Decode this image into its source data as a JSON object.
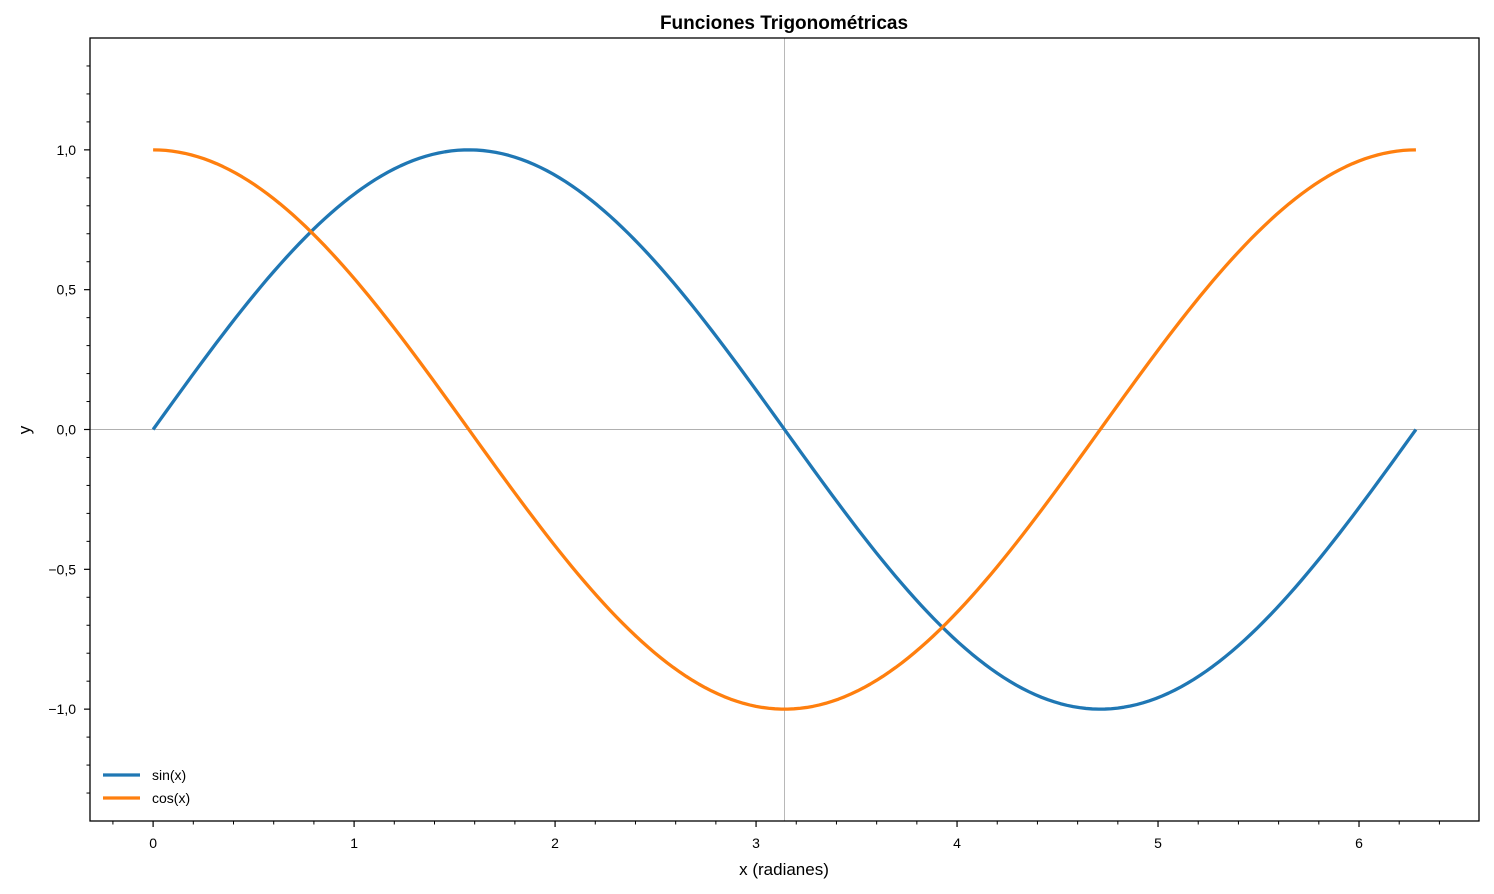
{
  "chart_data": {
    "type": "line",
    "title": "Funciones Trigonométricas",
    "xlabel": "x (radianes)",
    "ylabel": "y",
    "xlim": [
      -0.314,
      6.597
    ],
    "ylim": [
      -1.4,
      1.4
    ],
    "x_ticks": [
      0,
      1,
      2,
      3,
      4,
      5,
      6
    ],
    "x_tick_labels": [
      "0",
      "1",
      "2",
      "3",
      "4",
      "5",
      "6"
    ],
    "y_ticks": [
      -1.0,
      -0.5,
      0.0,
      0.5,
      1.0
    ],
    "y_tick_labels": [
      "−1,0",
      "−0,5",
      "0,0",
      "0,5",
      "1,0"
    ],
    "x_minor_step": 0.2,
    "y_minor_step": 0.1,
    "reference_lines": {
      "horizontal_y": 0,
      "vertical_x": 3.14159
    },
    "x_range": [
      0,
      6.28319
    ],
    "num_points": 200,
    "series": [
      {
        "name": "sin(x)",
        "function": "sin",
        "color": "#1f77b4"
      },
      {
        "name": "cos(x)",
        "function": "cos",
        "color": "#ff7f0e"
      }
    ],
    "legend_position": "lower-left",
    "grid": false
  }
}
